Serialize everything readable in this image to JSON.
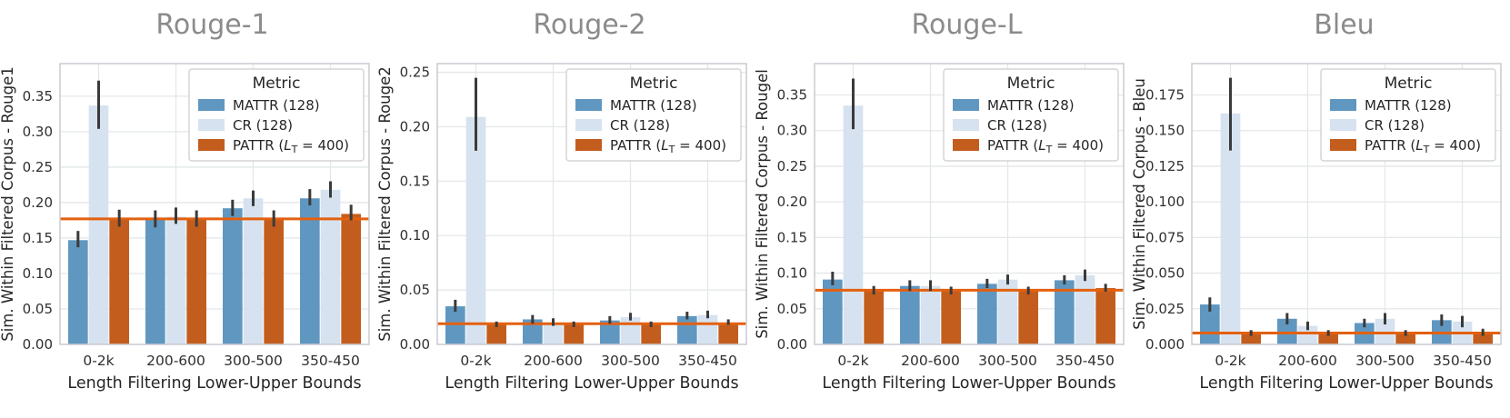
{
  "figure": {
    "background": "#ffffff",
    "colors": {
      "title": "#8b8b8b",
      "text": "#262626",
      "tick_text": "#303030",
      "grid": "#e4e7e9",
      "border": "#c9ccd1",
      "error_bar": "#3a3a3a",
      "legend_border": "#cccccc"
    },
    "legend": {
      "title": "Metric",
      "position": "upper right"
    }
  },
  "chart_data": [
    {
      "type": "bar",
      "title": "Rouge-1",
      "ylabel": "Sim. Within Filtered Corpus - Rouge1",
      "xlabel": "Length Filtering Lower-Upper Bounds",
      "categories": [
        "0-2k",
        "200-600",
        "300-500",
        "350-450"
      ],
      "yticks": [
        0.0,
        0.05,
        0.1,
        0.15,
        0.2,
        0.25,
        0.3,
        0.35
      ],
      "ytick_labels": [
        "0.00",
        "0.05",
        "0.10",
        "0.15",
        "0.20",
        "0.25",
        "0.30",
        "0.35"
      ],
      "ylim": [
        0,
        0.396
      ],
      "grid": true,
      "legend_title": "Metric",
      "hline": {
        "value": 0.177,
        "color": "#e4600f"
      },
      "series": [
        {
          "name": "MATTR (128)",
          "color": "#6097c1",
          "values": [
            0.147,
            0.177,
            0.192,
            0.206
          ],
          "errors": [
            [
              0.137,
              0.16
            ],
            [
              0.165,
              0.189
            ],
            [
              0.181,
              0.204
            ],
            [
              0.196,
              0.219
            ]
          ]
        },
        {
          "name": "CR (128)",
          "color": "#d6e2ef",
          "values": [
            0.337,
            0.18,
            0.206,
            0.218
          ],
          "errors": [
            [
              0.304,
              0.372
            ],
            [
              0.17,
              0.193
            ],
            [
              0.195,
              0.217
            ],
            [
              0.207,
              0.23
            ]
          ]
        },
        {
          "name": "PATTR (L_T = 400)",
          "color": "#c35d1d",
          "values": [
            0.177,
            0.177,
            0.177,
            0.184
          ],
          "errors": [
            [
              0.166,
              0.19
            ],
            [
              0.166,
              0.189
            ],
            [
              0.166,
              0.189
            ],
            [
              0.175,
              0.197
            ]
          ]
        }
      ]
    },
    {
      "type": "bar",
      "title": "Rouge-2",
      "ylabel": "Sim. Within Filtered Corpus - Rouge2",
      "xlabel": "Length Filtering Lower-Upper Bounds",
      "categories": [
        "0-2k",
        "200-600",
        "300-500",
        "350-450"
      ],
      "yticks": [
        0.0,
        0.05,
        0.1,
        0.15,
        0.2,
        0.25
      ],
      "ytick_labels": [
        "0.00",
        "0.05",
        "0.10",
        "0.15",
        "0.20",
        "0.25"
      ],
      "ylim": [
        0,
        0.258
      ],
      "grid": true,
      "legend_title": "Metric",
      "hline": {
        "value": 0.019,
        "color": "#e4600f"
      },
      "series": [
        {
          "name": "MATTR (128)",
          "color": "#6097c1",
          "values": [
            0.035,
            0.023,
            0.022,
            0.026
          ],
          "errors": [
            [
              0.03,
              0.041
            ],
            [
              0.019,
              0.027
            ],
            [
              0.019,
              0.026
            ],
            [
              0.023,
              0.03
            ]
          ]
        },
        {
          "name": "CR (128)",
          "color": "#d6e2ef",
          "values": [
            0.209,
            0.02,
            0.025,
            0.027
          ],
          "errors": [
            [
              0.178,
              0.245
            ],
            [
              0.017,
              0.024
            ],
            [
              0.022,
              0.029
            ],
            [
              0.024,
              0.031
            ]
          ]
        },
        {
          "name": "PATTR (L_T = 400)",
          "color": "#c35d1d",
          "values": [
            0.019,
            0.019,
            0.019,
            0.02
          ],
          "errors": [
            [
              0.016,
              0.021
            ],
            [
              0.016,
              0.021
            ],
            [
              0.016,
              0.021
            ],
            [
              0.018,
              0.023
            ]
          ]
        }
      ]
    },
    {
      "type": "bar",
      "title": "Rouge-L",
      "ylabel": "Sim. Within Filtered Corpus - Rougel",
      "xlabel": "Length Filtering Lower-Upper Bounds",
      "categories": [
        "0-2k",
        "200-600",
        "300-500",
        "350-450"
      ],
      "yticks": [
        0.0,
        0.05,
        0.1,
        0.15,
        0.2,
        0.25,
        0.3,
        0.35
      ],
      "ytick_labels": [
        "0.00",
        "0.05",
        "0.10",
        "0.15",
        "0.20",
        "0.25",
        "0.30",
        "0.35"
      ],
      "ylim": [
        0,
        0.394
      ],
      "grid": true,
      "legend_title": "Metric",
      "hline": {
        "value": 0.076,
        "color": "#e4600f"
      },
      "series": [
        {
          "name": "MATTR (128)",
          "color": "#6097c1",
          "values": [
            0.091,
            0.082,
            0.085,
            0.09
          ],
          "errors": [
            [
              0.083,
              0.102
            ],
            [
              0.075,
              0.09
            ],
            [
              0.079,
              0.092
            ],
            [
              0.084,
              0.097
            ]
          ]
        },
        {
          "name": "CR (128)",
          "color": "#d6e2ef",
          "values": [
            0.335,
            0.082,
            0.091,
            0.097
          ],
          "errors": [
            [
              0.302,
              0.373
            ],
            [
              0.075,
              0.09
            ],
            [
              0.084,
              0.098
            ],
            [
              0.089,
              0.105
            ]
          ]
        },
        {
          "name": "PATTR (L_T = 400)",
          "color": "#c35d1d",
          "values": [
            0.076,
            0.076,
            0.076,
            0.079
          ],
          "errors": [
            [
              0.07,
              0.082
            ],
            [
              0.07,
              0.081
            ],
            [
              0.07,
              0.081
            ],
            [
              0.074,
              0.085
            ]
          ]
        }
      ]
    },
    {
      "type": "bar",
      "title": "Bleu",
      "ylabel": "Sim. Within Filtered Corpus - Bleu",
      "xlabel": "Length Filtering Lower-Upper Bounds",
      "categories": [
        "0-2k",
        "200-600",
        "300-500",
        "350-450"
      ],
      "yticks": [
        0.0,
        0.025,
        0.05,
        0.075,
        0.1,
        0.125,
        0.15,
        0.175
      ],
      "ytick_labels": [
        "0.000",
        "0.025",
        "0.050",
        "0.075",
        "0.100",
        "0.125",
        "0.150",
        "0.175"
      ],
      "ylim": [
        0,
        0.197
      ],
      "grid": true,
      "legend_title": "Metric",
      "hline": {
        "value": 0.008,
        "color": "#e4600f"
      },
      "series": [
        {
          "name": "MATTR (128)",
          "color": "#6097c1",
          "values": [
            0.028,
            0.018,
            0.015,
            0.017
          ],
          "errors": [
            [
              0.023,
              0.033
            ],
            [
              0.014,
              0.022
            ],
            [
              0.012,
              0.018
            ],
            [
              0.013,
              0.021
            ]
          ]
        },
        {
          "name": "CR (128)",
          "color": "#d6e2ef",
          "values": [
            0.162,
            0.013,
            0.018,
            0.016
          ],
          "errors": [
            [
              0.136,
              0.187
            ],
            [
              0.01,
              0.016
            ],
            [
              0.014,
              0.022
            ],
            [
              0.012,
              0.02
            ]
          ]
        },
        {
          "name": "PATTR (L_T = 400)",
          "color": "#c35d1d",
          "values": [
            0.008,
            0.008,
            0.008,
            0.008
          ],
          "errors": [
            [
              0.006,
              0.01
            ],
            [
              0.006,
              0.01
            ],
            [
              0.006,
              0.01
            ],
            [
              0.006,
              0.011
            ]
          ]
        }
      ]
    }
  ]
}
